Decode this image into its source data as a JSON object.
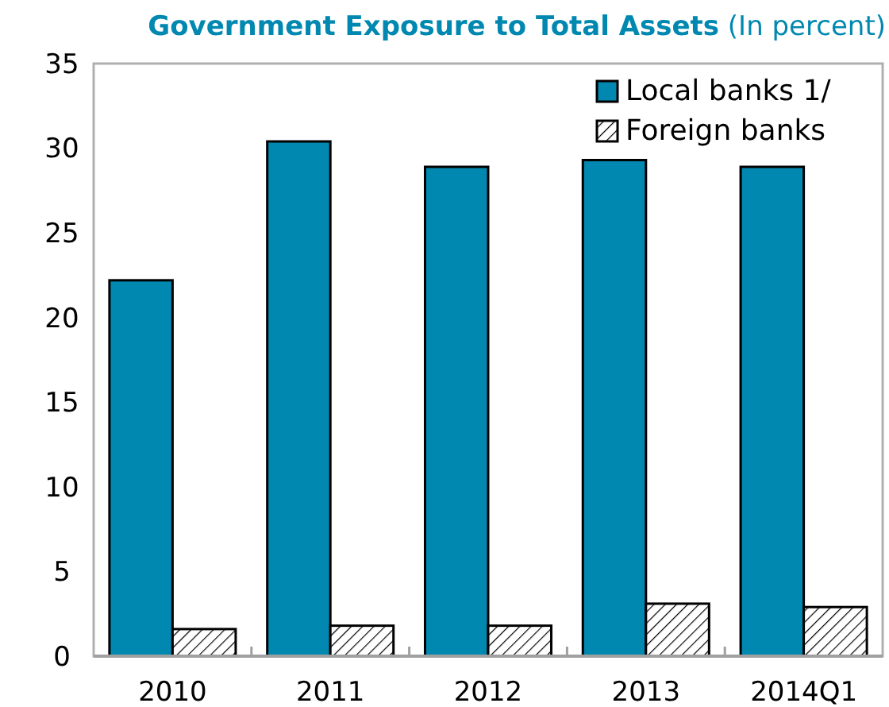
{
  "chart_data": {
    "type": "bar",
    "title": "Government Exposure to Total Assets",
    "subtitle": "(In percent)",
    "categories": [
      "2010",
      "2011",
      "2012",
      "2013",
      "2014Q1"
    ],
    "series": [
      {
        "name": "Local banks 1/",
        "color": "#0088b0",
        "values": [
          22.2,
          30.4,
          28.9,
          29.3,
          28.9
        ]
      },
      {
        "name": "Foreign banks",
        "color": "#000000",
        "values": [
          1.6,
          1.8,
          1.8,
          3.1,
          2.9
        ]
      }
    ],
    "ylim": [
      0,
      35
    ],
    "yticks": [
      0,
      5,
      10,
      15,
      20,
      25,
      30,
      35
    ],
    "grid": false,
    "legend": "top right"
  }
}
